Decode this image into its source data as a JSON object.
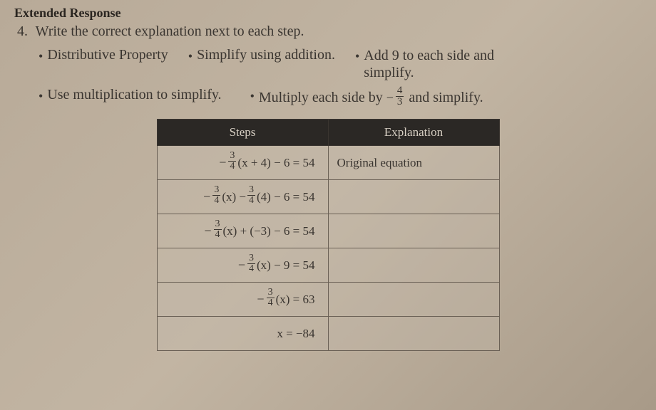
{
  "header_cut": "Extended Response",
  "question": {
    "number": "4.",
    "text": "Write the correct explanation next to each step."
  },
  "options": [
    "Distributive Property",
    "Simplify using addition.",
    {
      "line1": "Add 9 to each side and",
      "line2": "simplify."
    },
    "Use multiplication to simplify.",
    {
      "prefix": "Multiply each side by ",
      "frac_neg": true,
      "frac_num": "4",
      "frac_den": "3",
      "suffix": " and simplify."
    }
  ],
  "table": {
    "headers": {
      "steps": "Steps",
      "explanation": "Explanation"
    },
    "rows": [
      {
        "step_html": "neg34(x + 4) − 6 = 54",
        "explanation": "Original equation"
      },
      {
        "step_html": "neg34(x) − 34(4) − 6 = 54",
        "explanation": ""
      },
      {
        "step_html": "neg34(x) + (−3) − 6 = 54",
        "explanation": ""
      },
      {
        "step_html": "neg34(x) − 9 = 54",
        "explanation": ""
      },
      {
        "step_html": "neg34(x) = 63",
        "explanation": ""
      },
      {
        "step_html": "x = −84",
        "explanation": ""
      }
    ]
  },
  "colors": {
    "text": "#3a3530",
    "header_bg": "#2b2825",
    "header_text": "#d8d0c4",
    "border": "#6a6055",
    "page_bg": "#b8aa98"
  },
  "typography": {
    "body_fontsize": 20,
    "table_fontsize": 17,
    "frac_fontsize": 14
  }
}
